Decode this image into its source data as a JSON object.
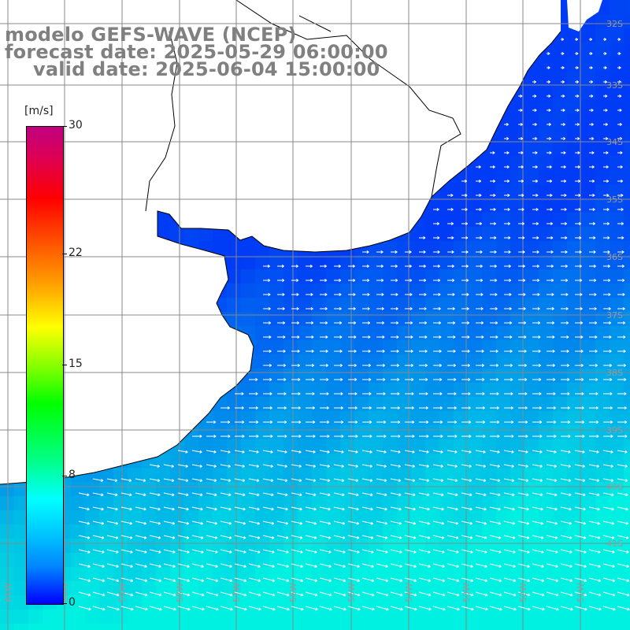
{
  "title": {
    "line1": "modelo GEFS-WAVE (NCEP)",
    "line2": "forecast date: 2025-05-29 06:00:00",
    "line3": "valid date: 2025-06-04 15:00:00"
  },
  "legend": {
    "unit": "[m/s]",
    "ticks": [
      {
        "label": "30",
        "value": 30
      },
      {
        "label": "22",
        "value": 22
      },
      {
        "label": "15",
        "value": 15
      },
      {
        "label": "8",
        "value": 8
      },
      {
        "label": "0",
        "value": 0
      }
    ],
    "min": 0,
    "max": 30
  },
  "map": {
    "ocean_color": "#1a6cf0",
    "land_color": "#ffffff",
    "grid_color": "#888888",
    "arrow_color": "#ffffff",
    "wind_direction": "eastward / east-southeast",
    "longitude_labels": [
      "61W",
      "60W",
      "59W",
      "58W",
      "57W",
      "56W",
      "55W",
      "54W",
      "53W",
      "52W",
      "51W"
    ],
    "latitude_labels": [
      "32S",
      "33S",
      "34S",
      "35S",
      "36S",
      "37S",
      "38S",
      "39S",
      "40S",
      "41S"
    ]
  }
}
